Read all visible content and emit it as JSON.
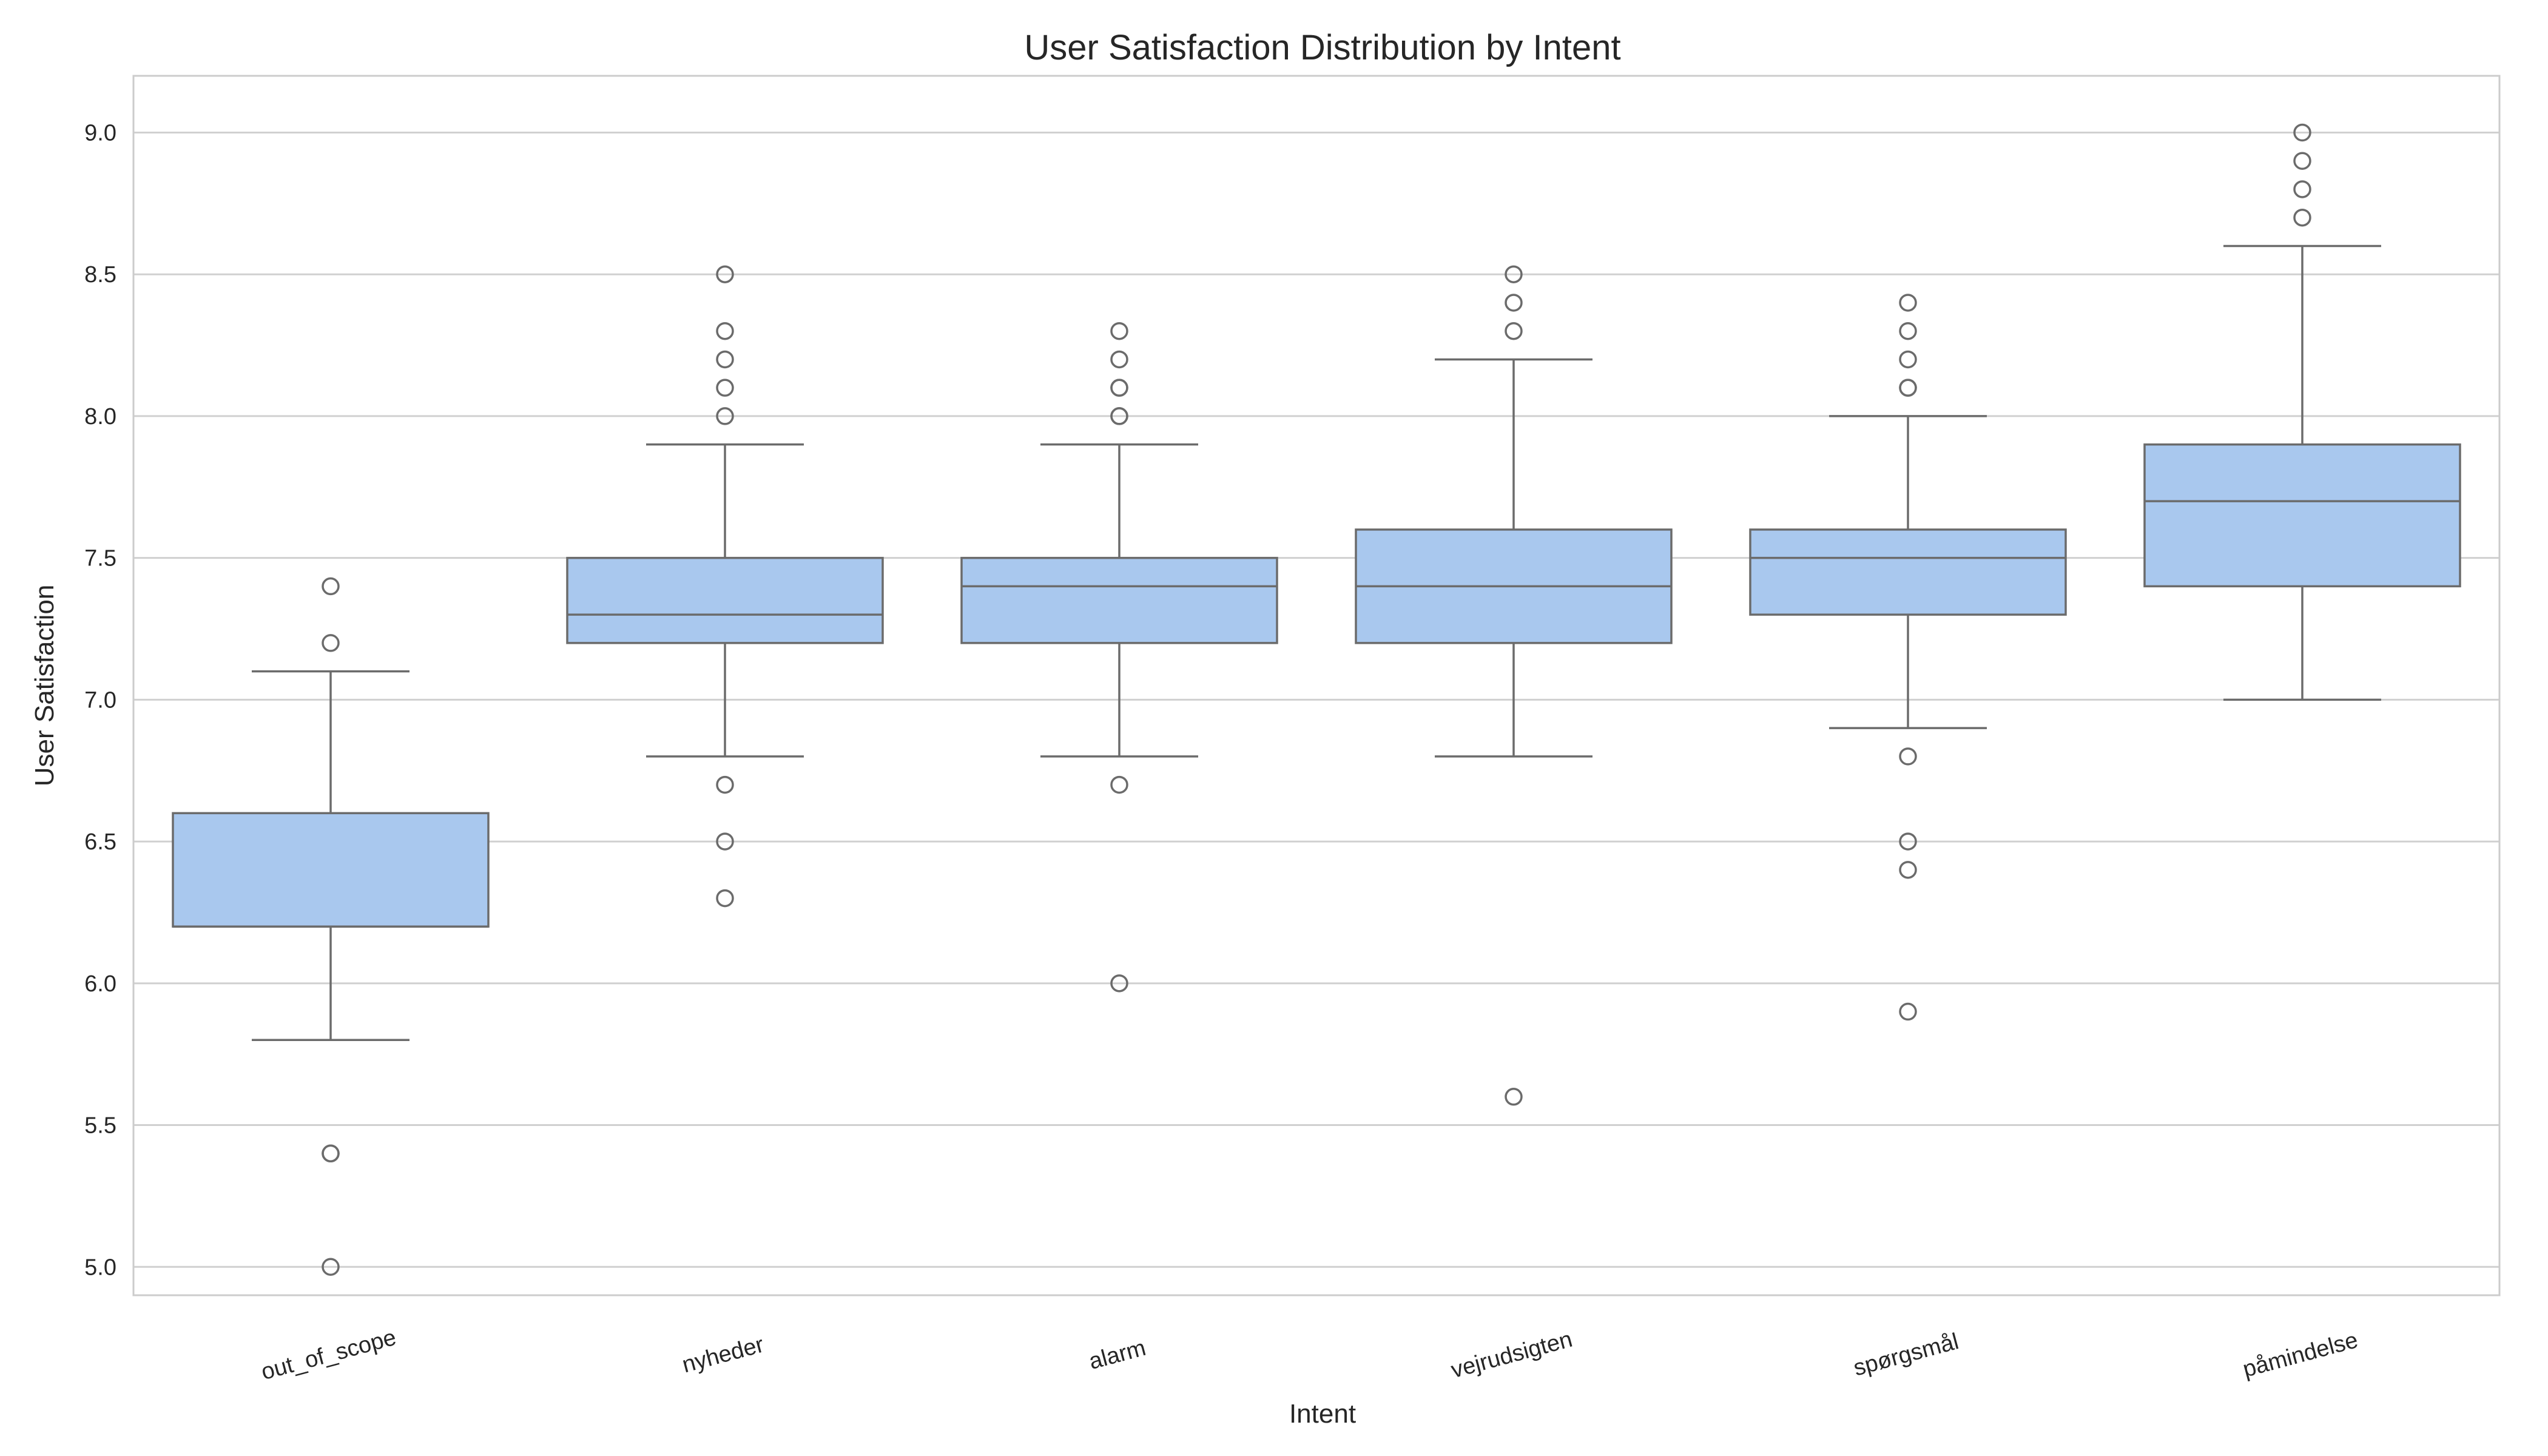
{
  "chart_data": {
    "type": "box",
    "title": "User Satisfaction Distribution by Intent",
    "xlabel": "Intent",
    "ylabel": "User Satisfaction",
    "ylim": [
      4.9,
      9.2
    ],
    "yticks": [
      "5.0",
      "5.5",
      "6.0",
      "6.5",
      "7.0",
      "7.5",
      "8.0",
      "8.5",
      "9.0"
    ],
    "grid": true,
    "box_color": "#a9c8ee",
    "line_color": "#6b6b6b",
    "categories": [
      "out_of_scope",
      "nyheder",
      "alarm",
      "vejrudsigten",
      "spørgsmål",
      "påmindelse"
    ],
    "boxes": [
      {
        "category": "out_of_scope",
        "whisker_low": 5.8,
        "q1": 6.2,
        "median": 6.2,
        "q3": 6.6,
        "whisker_high": 7.1,
        "outliers": [
          7.4,
          7.2,
          5.4,
          5.4,
          5.0
        ]
      },
      {
        "category": "nyheder",
        "whisker_low": 6.8,
        "q1": 7.2,
        "median": 7.3,
        "q3": 7.5,
        "whisker_high": 7.9,
        "outliers": [
          8.5,
          8.3,
          8.2,
          8.1,
          8.0,
          6.7,
          6.5,
          6.3
        ]
      },
      {
        "category": "alarm",
        "whisker_low": 6.8,
        "q1": 7.2,
        "median": 7.4,
        "q3": 7.5,
        "whisker_high": 7.9,
        "outliers": [
          8.3,
          8.2,
          8.1,
          8.1,
          8.0,
          8.0,
          6.7,
          6.0
        ]
      },
      {
        "category": "vejrudsigten",
        "whisker_low": 6.8,
        "q1": 7.2,
        "median": 7.4,
        "q3": 7.6,
        "whisker_high": 8.2,
        "outliers": [
          8.5,
          8.4,
          8.3,
          5.6
        ]
      },
      {
        "category": "spørgsmål",
        "whisker_low": 6.9,
        "q1": 7.3,
        "median": 7.5,
        "q3": 7.6,
        "whisker_high": 8.0,
        "outliers": [
          8.4,
          8.3,
          8.2,
          8.1,
          8.1,
          6.8,
          6.5,
          6.4,
          5.9
        ]
      },
      {
        "category": "påmindelse",
        "whisker_low": 7.0,
        "q1": 7.4,
        "median": 7.7,
        "q3": 7.9,
        "whisker_high": 8.6,
        "outliers": [
          9.0,
          8.9,
          8.8,
          8.7
        ]
      }
    ]
  }
}
